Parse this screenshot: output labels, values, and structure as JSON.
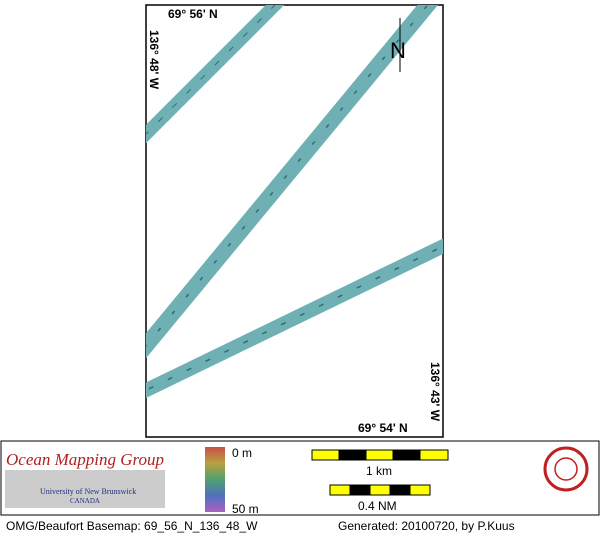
{
  "map": {
    "top_lat": "69° 56' N",
    "left_lon": "136° 48' W",
    "right_lon": "136° 43' W",
    "bottom_lat": "69° 54' N",
    "north": "N"
  },
  "legend": {
    "group": "Ocean Mapping Group",
    "university": "University of New Brunswick",
    "country": "CANADA",
    "depth_top": "0 m",
    "depth_bottom": "50 m",
    "scale_km": "1 km",
    "scale_nm": "0.4 NM"
  },
  "footer": {
    "basemap": "OMG/Beaufort Basemap: 69_56_N_136_48_W",
    "generated": "Generated: 20100720, by P.Kuus"
  }
}
